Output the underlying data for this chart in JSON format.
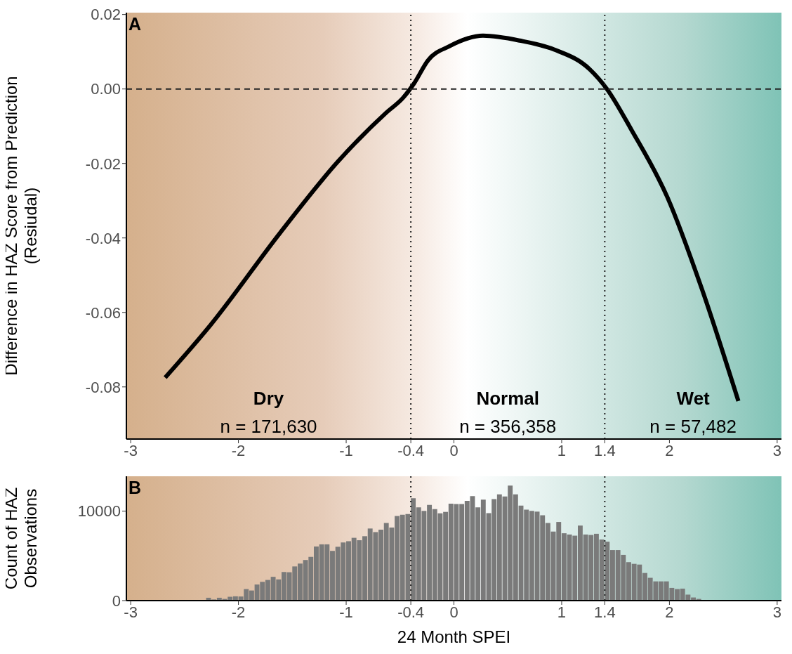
{
  "chart_data": [
    {
      "type": "line",
      "title": "A",
      "ylabel": "Difference in HAZ Score from Prediction (Resiudal)",
      "x": [
        -2.68,
        -2.26,
        -1.61,
        -1.08,
        -0.63,
        -0.47,
        -0.37,
        -0.24,
        -0.04,
        0.27,
        0.61,
        0.93,
        1.26,
        1.42,
        1.65,
        1.98,
        2.3,
        2.64
      ],
      "values": [
        -0.0775,
        -0.0634,
        -0.0385,
        -0.0196,
        -0.0064,
        -0.0023,
        0.0015,
        0.0077,
        0.0115,
        0.0143,
        0.013,
        0.0106,
        0.0053,
        0,
        -0.0111,
        -0.029,
        -0.0536,
        -0.0838
      ],
      "color": "#000000",
      "line_style": "solid",
      "xlim": [
        -3.04,
        3.04
      ],
      "xticks": [
        -3,
        -2,
        -1,
        -0.4,
        0,
        1,
        1.4,
        2,
        3
      ],
      "ylim": [
        -0.094,
        0.0205
      ],
      "yticks": [
        {
          "value": -0.08,
          "label": "-0.08"
        },
        {
          "value": -0.06,
          "label": "-0.06"
        },
        {
          "value": -0.04,
          "label": "-0.04"
        },
        {
          "value": -0.02,
          "label": "-0.02"
        },
        {
          "value": 0,
          "label": "0.00"
        },
        {
          "value": 0.02,
          "label": "0.02"
        }
      ],
      "ref_lines": [
        {
          "axis": "x",
          "value": -0.4,
          "line_style": "dotted"
        },
        {
          "axis": "x",
          "value": 1.4,
          "line_style": "dotted"
        },
        {
          "axis": "y",
          "value": 0,
          "line_style": "dashed"
        }
      ],
      "annotations": [
        "Dry",
        "n = 171,630",
        "Normal",
        "n = 356,358",
        "Wet",
        "n = 57,482"
      ]
    },
    {
      "type": "histogram",
      "title": "B",
      "xlabel": "24 Month SPEI",
      "ylabel": "Count of HAZ Observations",
      "color": "#7a7a7a",
      "bins": [
        -2.75,
        -2.7,
        -2.65,
        -2.6,
        -2.55,
        -2.5,
        -2.45,
        -2.4,
        -2.35,
        -2.3,
        -2.25,
        -2.2,
        -2.15,
        -2.1,
        -2.05,
        -2,
        -1.95,
        -1.9,
        -1.85,
        -1.8,
        -1.75,
        -1.7,
        -1.65,
        -1.6,
        -1.55,
        -1.5,
        -1.45,
        -1.4,
        -1.35,
        -1.3,
        -1.25,
        -1.2,
        -1.15,
        -1.1,
        -1.05,
        -1,
        -0.95,
        -0.9,
        -0.85,
        -0.8,
        -0.75,
        -0.7,
        -0.65,
        -0.6,
        -0.55,
        -0.5,
        -0.45,
        -0.4,
        -0.35,
        -0.3,
        -0.25,
        -0.2,
        -0.15,
        -0.1,
        -0.05,
        0,
        0.05,
        0.1,
        0.15,
        0.2,
        0.25,
        0.3,
        0.35,
        0.4,
        0.45,
        0.5,
        0.55,
        0.6,
        0.65,
        0.7,
        0.75,
        0.8,
        0.85,
        0.9,
        0.95,
        1,
        1.05,
        1.1,
        1.15,
        1.2,
        1.25,
        1.3,
        1.35,
        1.4,
        1.45,
        1.5,
        1.55,
        1.6,
        1.65,
        1.7,
        1.75,
        1.8,
        1.85,
        1.9,
        1.95,
        2,
        2.05,
        2.1,
        2.15,
        2.2,
        2.25,
        2.3,
        2.35,
        2.4,
        2.45,
        2.5,
        2.55,
        2.6,
        2.65,
        2.7
      ],
      "values": [
        10,
        20,
        20,
        30,
        40,
        40,
        50,
        60,
        80,
        320,
        130,
        320,
        190,
        430,
        480,
        460,
        1290,
        1130,
        1800,
        2100,
        2310,
        2660,
        2370,
        3200,
        3170,
        3820,
        4140,
        4540,
        4890,
        6050,
        6290,
        6290,
        5560,
        6020,
        6500,
        6640,
        7020,
        6750,
        7200,
        8060,
        7660,
        7930,
        8680,
        8170,
        9460,
        9600,
        9680,
        11450,
        10430,
        10030,
        10700,
        10220,
        9760,
        9920,
        10830,
        10800,
        10800,
        11160,
        11690,
        10430,
        11290,
        9780,
        11340,
        11880,
        11640,
        12850,
        11880,
        10620,
        10160,
        10030,
        9950,
        9540,
        8680,
        7720,
        8790,
        7530,
        7390,
        7260,
        8390,
        7390,
        7340,
        7470,
        6830,
        6590,
        5650,
        5650,
        5110,
        4300,
        4110,
        4030,
        3090,
        2550,
        2150,
        2150,
        2150,
        1420,
        1290,
        1340,
        670,
        350,
        190,
        60,
        50,
        40,
        40,
        30,
        30,
        20,
        10
      ],
      "xlim": [
        -3.04,
        3.04
      ],
      "xticks": [
        -3,
        -2,
        -1,
        -0.4,
        0,
        1,
        1.4,
        2,
        3
      ],
      "ylim": [
        0,
        13900
      ],
      "yticks": [
        0,
        10000
      ],
      "ref_lines": [
        {
          "axis": "x",
          "value": -0.4,
          "line_style": "dotted"
        },
        {
          "axis": "x",
          "value": 1.4,
          "line_style": "dotted"
        }
      ]
    }
  ]
}
